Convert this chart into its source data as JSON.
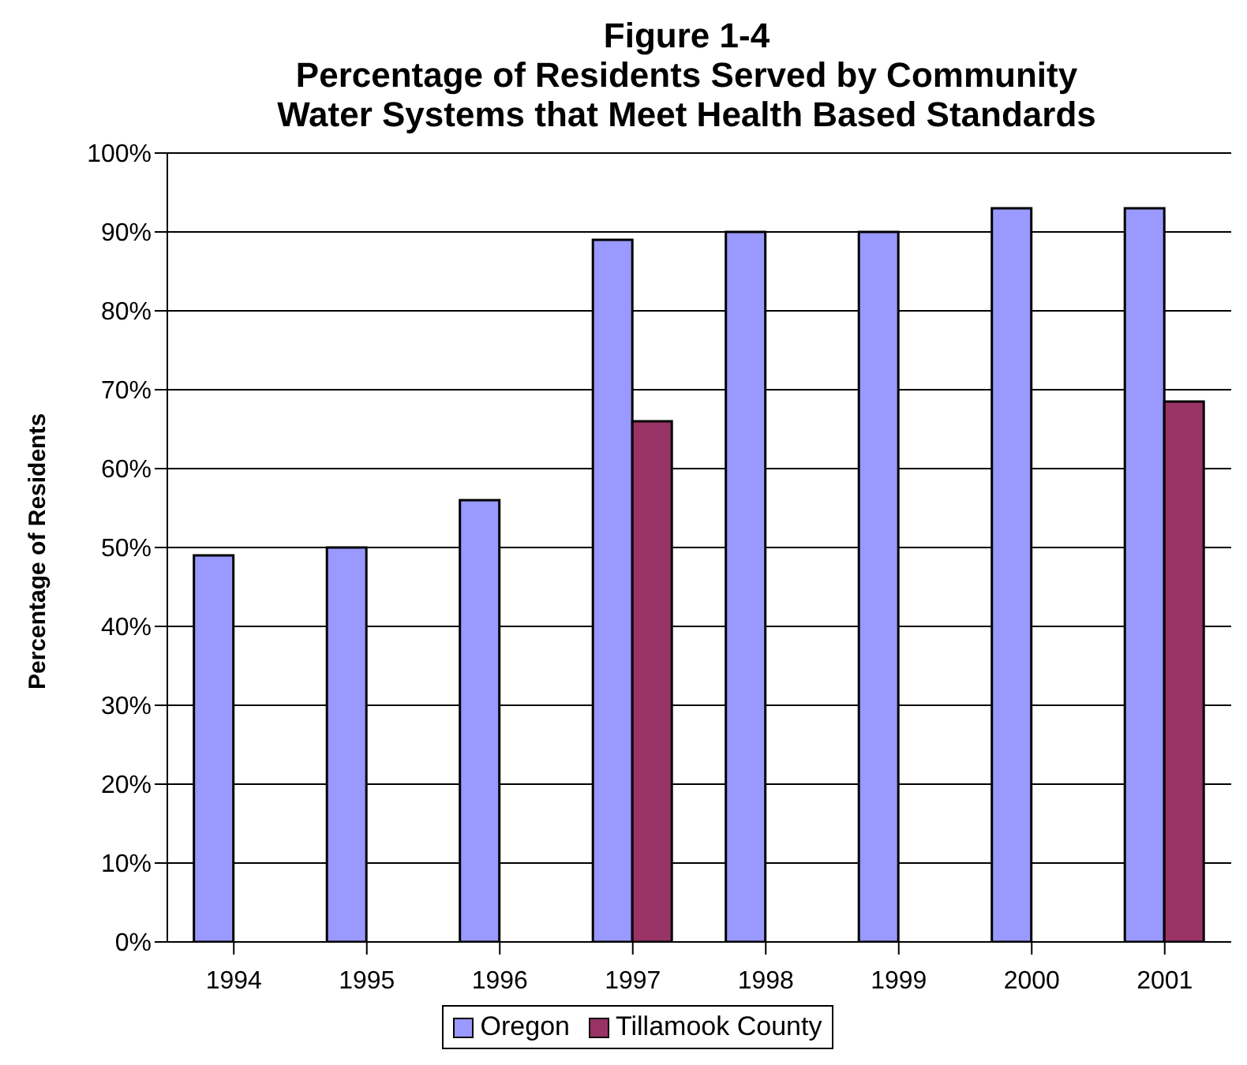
{
  "chart_data": {
    "type": "bar",
    "title": "Figure 1-4\nPercentage of Residents Served by Community\nWater Systems that Meet Health Based Standards",
    "ylabel": "Percentage of Residents",
    "categories": [
      "1994",
      "1995",
      "1996",
      "1997",
      "1998",
      "1999",
      "2000",
      "2001"
    ],
    "series": [
      {
        "name": "Oregon",
        "color": "#9999ff",
        "values": [
          49,
          50,
          56,
          89,
          90,
          90,
          93,
          93
        ]
      },
      {
        "name": "Tillamook County",
        "color": "#993366",
        "values": [
          null,
          null,
          null,
          66,
          null,
          null,
          null,
          68.5
        ]
      }
    ],
    "ylim": [
      0,
      100
    ],
    "yticks": [
      {
        "value": 0,
        "label": "0%"
      },
      {
        "value": 10,
        "label": "10%"
      },
      {
        "value": 20,
        "label": "20%"
      },
      {
        "value": 30,
        "label": "30%"
      },
      {
        "value": 40,
        "label": "40%"
      },
      {
        "value": 50,
        "label": "50%"
      },
      {
        "value": 60,
        "label": "60%"
      },
      {
        "value": 70,
        "label": "70%"
      },
      {
        "value": 80,
        "label": "80%"
      },
      {
        "value": 90,
        "label": "90%"
      },
      {
        "value": 100,
        "label": "100%"
      }
    ],
    "grid": "y",
    "legend": "bottom"
  }
}
